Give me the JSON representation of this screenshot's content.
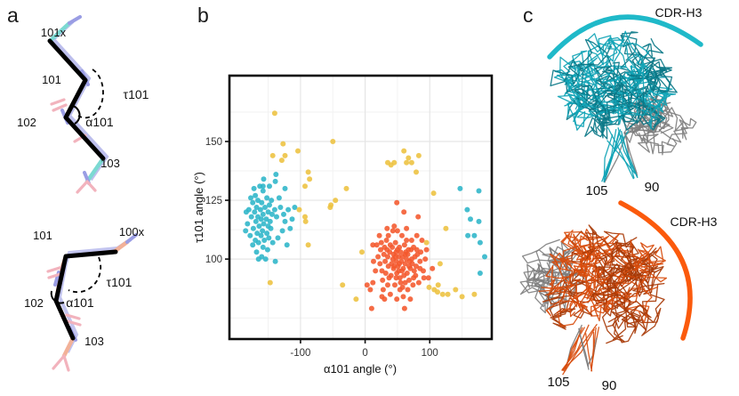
{
  "panels": {
    "a": {
      "letter": "a",
      "top": {
        "labels": {
          "res_prev": "101x",
          "res_101": "101",
          "tau": "τ101",
          "res_102": "102",
          "alpha": "α101",
          "res_103": "103"
        },
        "colors": {
          "stick": "#7bd9d2",
          "nitrogen": "#9a9de4",
          "oxygen": "#f2b3bd",
          "trace": "#000000"
        }
      },
      "bottom": {
        "labels": {
          "res_101": "101",
          "res_next": "100x",
          "tau": "τ101",
          "res_102": "102",
          "alpha": "α101",
          "res_103": "103"
        },
        "colors": {
          "stick": "#f2b198",
          "nitrogen": "#9a9de4",
          "oxygen": "#f2b3bd",
          "trace": "#000000"
        }
      }
    },
    "b": {
      "letter": "b"
    },
    "c": {
      "letter": "c",
      "top": {
        "arc_label": "CDR-H3",
        "left_num": "105",
        "right_num": "90",
        "colors": {
          "arc": "#1fb9c9",
          "main": "#0fa3b5",
          "dark": "#0a7787",
          "gray": "#7d7d7d"
        }
      },
      "bottom": {
        "arc_label": "CDR-H3",
        "left_num": "105",
        "right_num": "90",
        "colors": {
          "arc": "#fb5a0c",
          "main": "#d84c0c",
          "dark": "#a83a06",
          "gray": "#7d7d7d"
        }
      }
    }
  },
  "chart_data": {
    "type": "scatter",
    "title": "",
    "xlabel": "α101 angle (°)",
    "ylabel": "τ101 angle (°)",
    "xlim": [
      -210,
      196
    ],
    "ylim": [
      66,
      178
    ],
    "xticks": [
      -100,
      0,
      100
    ],
    "yticks": [
      100,
      125,
      150
    ],
    "xminor": [
      -150,
      -50,
      50,
      150
    ],
    "yminor": [
      75,
      87.5,
      112.5,
      137.5,
      162.5
    ],
    "grid": true,
    "legend": "none",
    "point_radius": 3,
    "series": [
      {
        "name": "teal",
        "color": "#2CB5C8",
        "points": [
          [
            -163,
            131
          ],
          [
            -158,
            129
          ],
          [
            -170,
            127
          ],
          [
            -152,
            126
          ],
          [
            -166,
            125
          ],
          [
            -174,
            124
          ],
          [
            -160,
            124
          ],
          [
            -148,
            123
          ],
          [
            -168,
            122
          ],
          [
            -155,
            122
          ],
          [
            -180,
            121
          ],
          [
            -162,
            121
          ],
          [
            -150,
            120
          ],
          [
            -171,
            120
          ],
          [
            -158,
            119
          ],
          [
            -144,
            119
          ],
          [
            -166,
            118
          ],
          [
            -176,
            118
          ],
          [
            -153,
            117
          ],
          [
            -161,
            117
          ],
          [
            -147,
            116
          ],
          [
            -169,
            116
          ],
          [
            -157,
            115
          ],
          [
            -182,
            115
          ],
          [
            -150,
            114
          ],
          [
            -164,
            114
          ],
          [
            -173,
            113
          ],
          [
            -146,
            113
          ],
          [
            -159,
            112
          ],
          [
            -167,
            111
          ],
          [
            -152,
            111
          ],
          [
            -178,
            110
          ],
          [
            -161,
            110
          ],
          [
            -149,
            109
          ],
          [
            -170,
            108
          ],
          [
            -156,
            108
          ],
          [
            -165,
            107
          ],
          [
            -143,
            107
          ],
          [
            -174,
            106
          ],
          [
            -158,
            105
          ],
          [
            -151,
            104
          ],
          [
            -168,
            103
          ],
          [
            -160,
            101
          ],
          [
            -154,
            100
          ],
          [
            -185,
            112
          ],
          [
            -184,
            120
          ],
          [
            -177,
            126
          ],
          [
            -145,
            125
          ],
          [
            -140,
            121
          ],
          [
            -137,
            118
          ],
          [
            -131,
            122
          ],
          [
            -124,
            116
          ],
          [
            -119,
            121
          ],
          [
            -128,
            112
          ],
          [
            -135,
            109
          ],
          [
            -121,
            106
          ],
          [
            -116,
            113
          ],
          [
            -126,
            119
          ],
          [
            -133,
            126
          ],
          [
            -109,
            122
          ],
          [
            -113,
            117
          ],
          [
            -138,
            136
          ],
          [
            -157,
            134
          ],
          [
            -172,
            130
          ],
          [
            -148,
            131
          ],
          [
            -124,
            130
          ],
          [
            -139,
            133
          ],
          [
            -158,
            131
          ],
          [
            -165,
            100
          ],
          [
            -139,
            99
          ],
          [
            147,
            130
          ],
          [
            176,
            129
          ],
          [
            158,
            121
          ],
          [
            163,
            117
          ],
          [
            176,
            116
          ],
          [
            159,
            110
          ],
          [
            169,
            110
          ],
          [
            178,
            107
          ],
          [
            178,
            94
          ],
          [
            185,
            101
          ]
        ]
      },
      {
        "name": "orange",
        "color": "#F4582C",
        "points": [
          [
            24,
            104
          ],
          [
            31,
            99
          ],
          [
            38,
            103
          ],
          [
            45,
            97
          ],
          [
            52,
            101
          ],
          [
            59,
            96
          ],
          [
            66,
            102
          ],
          [
            73,
            98
          ],
          [
            80,
            104
          ],
          [
            40,
            93
          ],
          [
            47,
            107
          ],
          [
            54,
            92
          ],
          [
            61,
            106
          ],
          [
            68,
            91
          ],
          [
            75,
            105
          ],
          [
            33,
            108
          ],
          [
            26,
            95
          ],
          [
            48,
            99
          ],
          [
            55,
            103
          ],
          [
            62,
            98
          ],
          [
            35,
            101
          ],
          [
            42,
            105
          ],
          [
            49,
            94
          ],
          [
            56,
            99
          ],
          [
            63,
            103
          ],
          [
            70,
            96
          ],
          [
            77,
            101
          ],
          [
            29,
            102
          ],
          [
            36,
            97
          ],
          [
            43,
            100
          ],
          [
            50,
            104
          ],
          [
            57,
            95
          ],
          [
            64,
            100
          ],
          [
            71,
            104
          ],
          [
            78,
            93
          ],
          [
            85,
            99
          ],
          [
            23,
            98
          ],
          [
            30,
            105
          ],
          [
            37,
            92
          ],
          [
            44,
            102
          ],
          [
            51,
            97
          ],
          [
            58,
            101
          ],
          [
            65,
            94
          ],
          [
            72,
            100
          ],
          [
            79,
            97
          ],
          [
            86,
            103
          ],
          [
            27,
            91
          ],
          [
            34,
            104
          ],
          [
            41,
            98
          ],
          [
            48,
            103
          ],
          [
            55,
            90
          ],
          [
            62,
            102
          ],
          [
            69,
            99
          ],
          [
            76,
            95
          ],
          [
            83,
            90
          ],
          [
            20,
            101
          ],
          [
            90,
            95
          ],
          [
            46,
            89
          ],
          [
            53,
            105
          ],
          [
            60,
            93
          ],
          [
            67,
            104
          ],
          [
            74,
            89
          ],
          [
            81,
            102
          ],
          [
            25,
            107
          ],
          [
            32,
            94
          ],
          [
            39,
            106
          ],
          [
            53,
            98
          ],
          [
            47,
            101
          ],
          [
            58,
            88
          ],
          [
            44,
            96
          ],
          [
            36,
            110
          ],
          [
            64,
            108
          ],
          [
            28,
            87
          ],
          [
            57,
            110
          ],
          [
            50,
            112
          ],
          [
            43,
            112
          ],
          [
            66,
            87
          ],
          [
            72,
            108
          ],
          [
            16,
            95
          ],
          [
            12,
            90
          ],
          [
            88,
            108
          ],
          [
            93,
            100
          ],
          [
            39,
            85
          ],
          [
            59,
            84
          ],
          [
            70,
            83
          ],
          [
            30,
            83
          ],
          [
            22,
            110
          ],
          [
            80,
            110
          ],
          [
            91,
            92
          ],
          [
            18,
            106
          ],
          [
            54,
            87
          ],
          [
            62,
            90
          ],
          [
            35,
            89
          ],
          [
            48,
            92
          ],
          [
            75,
            92
          ],
          [
            85,
            96
          ],
          [
            13,
            99
          ],
          [
            95,
            104
          ],
          [
            68,
            97
          ],
          [
            52,
            95
          ],
          [
            82,
            118
          ],
          [
            60,
            120
          ],
          [
            49,
            124
          ],
          [
            34,
            113
          ],
          [
            45,
            114
          ],
          [
            64,
            113
          ],
          [
            10,
            79
          ],
          [
            61,
            79
          ],
          [
            3,
            89
          ],
          [
            8,
            87
          ],
          [
            12,
            106
          ],
          [
            26,
            84
          ],
          [
            49,
            83
          ],
          [
            98,
            92
          ],
          [
            104,
            96
          ]
        ]
      },
      {
        "name": "yellow",
        "color": "#EDC23F",
        "points": [
          [
            -140,
            162
          ],
          [
            -127,
            149
          ],
          [
            -50,
            150
          ],
          [
            -143,
            144
          ],
          [
            -124,
            144
          ],
          [
            -129,
            142
          ],
          [
            -104,
            146
          ],
          [
            -88,
            137
          ],
          [
            -86,
            134
          ],
          [
            -93,
            131
          ],
          [
            -29,
            130
          ],
          [
            -46,
            125
          ],
          [
            -53,
            123
          ],
          [
            -102,
            121
          ],
          [
            -54,
            122
          ],
          [
            -93,
            118
          ],
          [
            -92,
            116
          ],
          [
            -88,
            106
          ],
          [
            -147,
            90
          ],
          [
            -35,
            89
          ],
          [
            -14,
            83
          ],
          [
            -5,
            103
          ],
          [
            60,
            146
          ],
          [
            67,
            143
          ],
          [
            64,
            141
          ],
          [
            72,
            141
          ],
          [
            35,
            141
          ],
          [
            40,
            140
          ],
          [
            45,
            141
          ],
          [
            83,
            144
          ],
          [
            79,
            137
          ],
          [
            106,
            128
          ],
          [
            125,
            113
          ],
          [
            95,
            107
          ],
          [
            116,
            98
          ],
          [
            99,
            88
          ],
          [
            107,
            87
          ],
          [
            112,
            86
          ],
          [
            113,
            89
          ],
          [
            120,
            85
          ],
          [
            128,
            85
          ],
          [
            140,
            87
          ],
          [
            150,
            84
          ],
          [
            169,
            85
          ]
        ]
      }
    ]
  }
}
